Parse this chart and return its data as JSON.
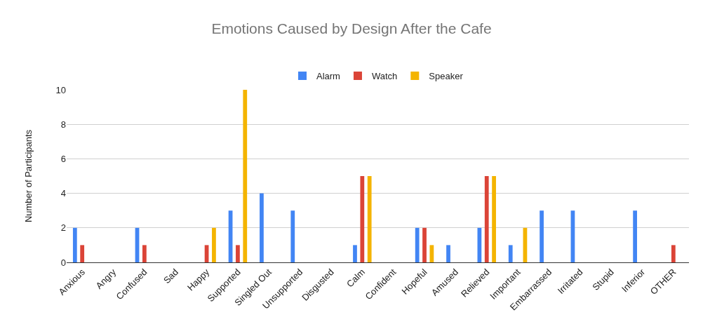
{
  "chart_data": {
    "type": "bar",
    "title": "Emotions Caused by Design After the Cafe",
    "ylabel": "Number of Participants",
    "categories": [
      "Anxious",
      "Angry",
      "Confused",
      "Sad",
      "Happy",
      "Supported",
      "Singled Out",
      "Unsupported",
      "Disgusted",
      "Calm",
      "Confident",
      "Hopeful",
      "Amused",
      "Relieved",
      "Important",
      "Embarrassed",
      "Irritated",
      "Stupid",
      "Inferior",
      "OTHER"
    ],
    "series": [
      {
        "name": "Alarm",
        "color": "#4285f4",
        "values": [
          2,
          0,
          2,
          0,
          0,
          3,
          4,
          3,
          0,
          1,
          0,
          2,
          1,
          2,
          1,
          3,
          3,
          0,
          3,
          0
        ]
      },
      {
        "name": "Watch",
        "color": "#db4437",
        "values": [
          1,
          0,
          1,
          0,
          1,
          1,
          0,
          0,
          0,
          5,
          0,
          2,
          0,
          5,
          0,
          0,
          0,
          0,
          0,
          1
        ]
      },
      {
        "name": "Speaker",
        "color": "#f4b400",
        "values": [
          0,
          0,
          0,
          0,
          2,
          10,
          0,
          0,
          0,
          5,
          0,
          1,
          0,
          5,
          2,
          0,
          0,
          0,
          0,
          0
        ]
      }
    ],
    "ylim": [
      0,
      10
    ],
    "yticks": [
      0,
      2,
      4,
      6,
      8,
      10
    ],
    "grid": "y",
    "legend": "top"
  }
}
